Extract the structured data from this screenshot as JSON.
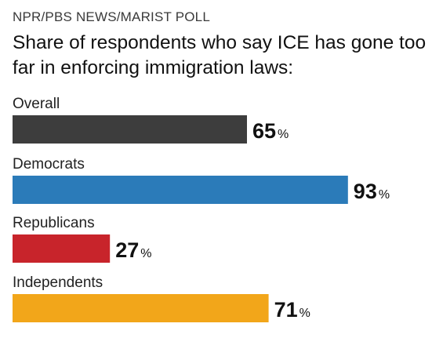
{
  "source": "NPR/PBS NEWS/MARIST POLL",
  "chart_data": {
    "type": "bar",
    "orientation": "horizontal",
    "title": "Share of respondents who say ICE has gone too far in enforcing immigration laws:",
    "categories": [
      "Overall",
      "Democrats",
      "Republicans",
      "Independents"
    ],
    "values": [
      65,
      93,
      27,
      71
    ],
    "unit": "%",
    "colors": [
      "#3d3d3d",
      "#2b7bb9",
      "#c8242b",
      "#f2a61a"
    ],
    "xlim": [
      0,
      100
    ],
    "grid": false,
    "legend": "none"
  }
}
